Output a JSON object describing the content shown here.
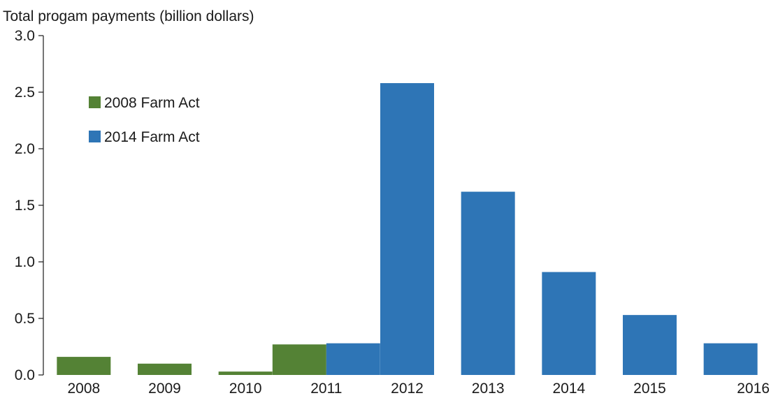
{
  "chart_data": {
    "type": "bar",
    "title": "",
    "xlabel": "",
    "ylabel": "Total progam payments (billion dollars)",
    "ylim": [
      0,
      3.0
    ],
    "yticks": [
      "0.0",
      "0.5",
      "1.0",
      "1.5",
      "2.0",
      "2.5",
      "3.0"
    ],
    "categories": [
      "2008",
      "2009",
      "2010",
      "2011",
      "2012",
      "2013",
      "2014",
      "2015",
      "2016"
    ],
    "series": [
      {
        "name": "2008 Farm Act",
        "color": "#548235",
        "values": [
          0.16,
          0.1,
          0.03,
          0.27,
          null,
          null,
          null,
          null,
          null
        ]
      },
      {
        "name": "2014 Farm Act",
        "color": "#2e75b6",
        "values": [
          null,
          null,
          null,
          0.28,
          2.58,
          1.62,
          0.91,
          0.53,
          0.28
        ]
      }
    ],
    "grid": false,
    "legend_position": "top-left"
  }
}
